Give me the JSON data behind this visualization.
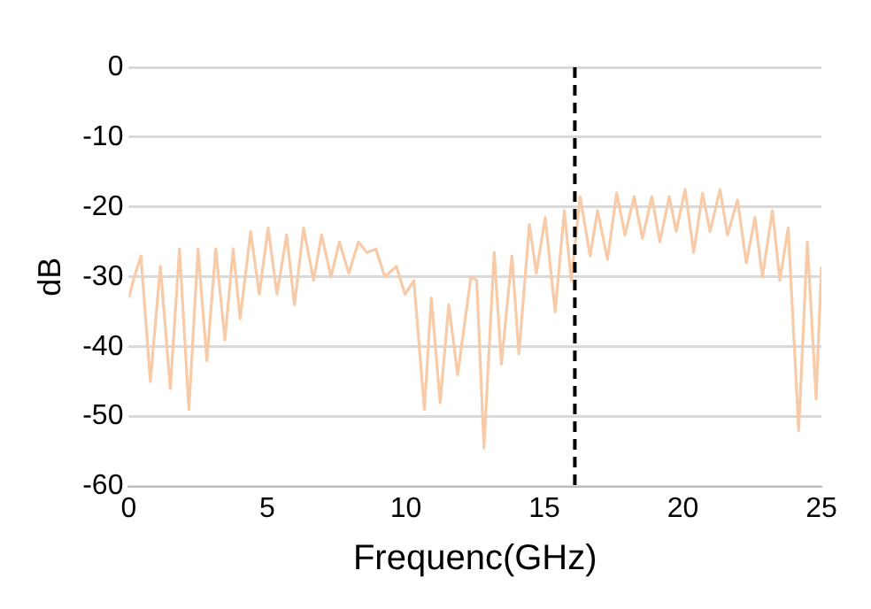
{
  "chart_data": {
    "type": "line",
    "xlabel": "Frequenc(GHz)",
    "ylabel": "dB",
    "xlim": [
      0,
      25
    ],
    "xticks": [
      0,
      5,
      10,
      15,
      20,
      25
    ],
    "ylim": [
      -60,
      0
    ],
    "yticks": [
      -60,
      -50,
      -40,
      -30,
      -20,
      -10,
      0
    ],
    "grid": "y",
    "legend": false,
    "marker": "none",
    "line_style": "solid",
    "series": [
      {
        "color": "#f8cba8",
        "x": [
          0,
          0.2,
          0.44,
          0.78,
          1.14,
          1.5,
          1.83,
          2.17,
          2.5,
          2.82,
          3.14,
          3.47,
          3.77,
          4.02,
          4.4,
          4.71,
          5.03,
          5.35,
          5.7,
          5.98,
          6.31,
          6.67,
          6.96,
          7.3,
          7.6,
          7.94,
          8.29,
          8.6,
          8.92,
          9.24,
          9.66,
          9.97,
          10.29,
          10.67,
          10.92,
          11.24,
          11.55,
          11.87,
          12.35,
          12.56,
          12.82,
          13.19,
          13.45,
          13.83,
          14.08,
          14.46,
          14.71,
          15.03,
          15.39,
          15.72,
          15.97,
          16.29,
          16.65,
          16.92,
          17.28,
          17.61,
          17.91,
          18.24,
          18.54,
          18.88,
          19.17,
          19.51,
          19.76,
          20.08,
          20.39,
          20.71,
          20.98,
          21.34,
          21.61,
          21.97,
          22.29,
          22.6,
          22.87,
          23.23,
          23.5,
          23.8,
          24.18,
          24.49,
          24.81,
          25
        ],
        "values": [
          -33,
          -30,
          -27,
          -45,
          -28.5,
          -46,
          -26,
          -49,
          -26,
          -42,
          -26,
          -39,
          -26,
          -36,
          -23.5,
          -32.5,
          -23,
          -32.5,
          -24,
          -34,
          -23,
          -30.5,
          -24,
          -30,
          -25,
          -29.5,
          -25,
          -26.5,
          -26,
          -30,
          -28.5,
          -32.5,
          -30.5,
          -49,
          -33,
          -48,
          -34,
          -44,
          -30,
          -30.5,
          -54.5,
          -26.5,
          -42.5,
          -27,
          -41,
          -22.5,
          -29.5,
          -21.5,
          -35,
          -20.5,
          -30.5,
          -18.5,
          -27,
          -20.5,
          -27.5,
          -18,
          -24,
          -18.5,
          -24.5,
          -18.5,
          -25,
          -18.5,
          -23.5,
          -17.5,
          -26.5,
          -18,
          -23.5,
          -17.5,
          -24,
          -19,
          -28,
          -21.5,
          -30,
          -20.5,
          -30.5,
          -23,
          -52,
          -25,
          -47.5,
          -28.5
        ]
      }
    ],
    "ref_lines": [
      {
        "axis": "x",
        "value": 16.1,
        "color": "#000000",
        "line_style": "dashed"
      }
    ]
  }
}
